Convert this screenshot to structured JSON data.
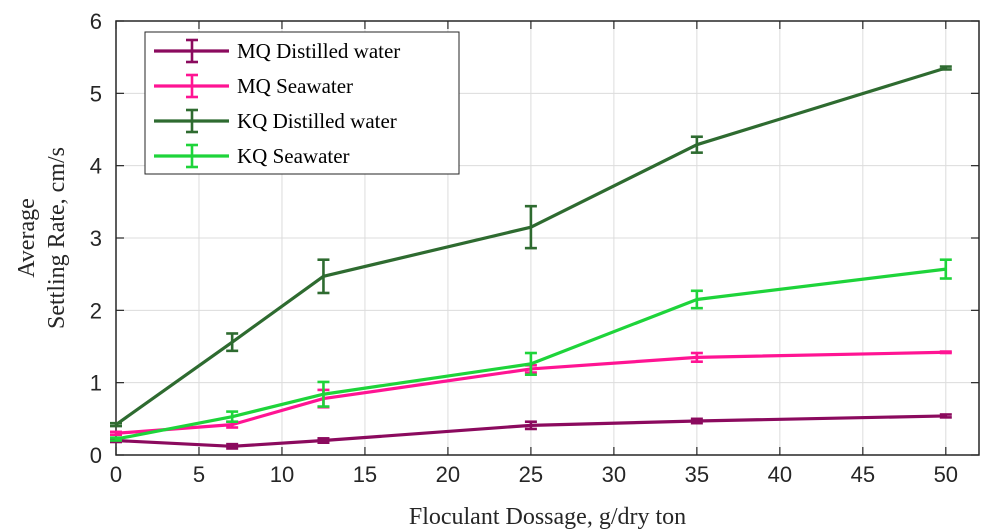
{
  "chart_data": {
    "type": "line",
    "xlabel": "Floculant Dossage, g/dry ton",
    "ylabel": [
      "Average",
      "Settling Rate, cm/s"
    ],
    "xlim": [
      0,
      52
    ],
    "ylim": [
      0,
      6
    ],
    "xticks": [
      "0",
      "5",
      "10",
      "15",
      "20",
      "25",
      "30",
      "35",
      "40",
      "45",
      "50"
    ],
    "yticks": [
      "0",
      "1",
      "2",
      "3",
      "4",
      "5",
      "6"
    ],
    "grid": true,
    "legend_position": "top-left",
    "series": [
      {
        "name": "MQ Distilled water",
        "color": "#8B0A5E",
        "x": [
          0,
          7,
          12.5,
          25,
          35,
          50
        ],
        "y": [
          0.2,
          0.12,
          0.2,
          0.41,
          0.47,
          0.54
        ],
        "err": [
          0.02,
          0.03,
          0.03,
          0.05,
          0.03,
          0.02
        ]
      },
      {
        "name": "MQ Seawater",
        "color": "#FF1493",
        "x": [
          0,
          7,
          12.5,
          25,
          35,
          50
        ],
        "y": [
          0.3,
          0.42,
          0.78,
          1.19,
          1.35,
          1.42
        ],
        "err": [
          0.02,
          0.04,
          0.12,
          0.05,
          0.06,
          0.01
        ]
      },
      {
        "name": "KQ Distilled water",
        "color": "#2E6B30",
        "x": [
          0,
          7,
          12.5,
          25,
          35,
          50
        ],
        "y": [
          0.42,
          1.56,
          2.47,
          3.15,
          4.29,
          5.35
        ],
        "err": [
          0.02,
          0.12,
          0.23,
          0.29,
          0.11,
          0.02
        ]
      },
      {
        "name": "KQ Seawater",
        "color": "#1ED43A",
        "x": [
          0,
          7,
          12.5,
          25,
          35,
          50
        ],
        "y": [
          0.22,
          0.53,
          0.84,
          1.26,
          2.15,
          2.57
        ],
        "err": [
          0.02,
          0.07,
          0.17,
          0.15,
          0.12,
          0.13
        ]
      }
    ]
  }
}
